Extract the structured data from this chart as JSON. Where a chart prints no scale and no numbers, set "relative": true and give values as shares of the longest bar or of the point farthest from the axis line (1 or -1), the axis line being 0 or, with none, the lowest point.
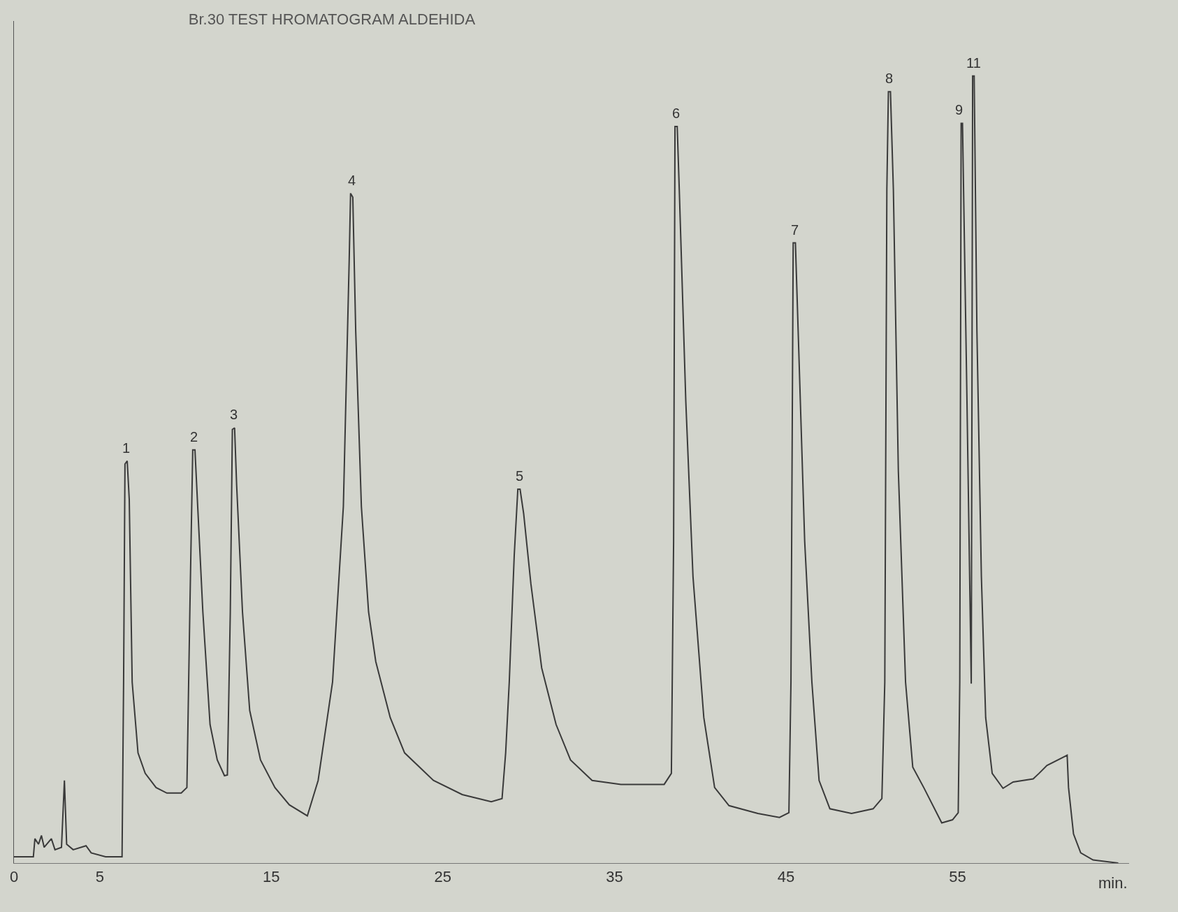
{
  "chart_data": {
    "type": "line",
    "title": "Br.30 TEST HROMATOGRAM ALDEHIDA",
    "xlabel": "min.",
    "relative": true,
    "color": "#3a3a3a",
    "marker": "none",
    "line_style": "solid",
    "xlim": [
      0,
      65
    ],
    "xticks": [
      0,
      5,
      15,
      25,
      35,
      45,
      55
    ],
    "x": [
      0,
      1.13,
      1.22,
      1.43,
      1.6,
      1.76,
      2.18,
      2.39,
      2.77,
      2.94,
      3.07,
      3.45,
      4.2,
      4.5,
      5.34,
      6.3,
      6.39,
      6.47,
      6.6,
      6.72,
      6.89,
      7.23,
      7.65,
      8.28,
      8.91,
      9.75,
      10.08,
      10.25,
      10.42,
      10.55,
      10.71,
      11.01,
      11.43,
      11.85,
      12.27,
      12.44,
      12.61,
      12.73,
      12.86,
      12.98,
      13.32,
      13.74,
      14.37,
      15.21,
      16.05,
      17.1,
      17.73,
      18.57,
      19.2,
      19.54,
      19.62,
      19.75,
      19.92,
      20.25,
      20.67,
      21.09,
      21.93,
      22.77,
      24.45,
      26.13,
      27.82,
      28.45,
      28.66,
      28.87,
      29.16,
      29.37,
      29.5,
      29.71,
      30.13,
      30.76,
      31.6,
      32.44,
      33.7,
      35.38,
      37.9,
      38.32,
      38.45,
      38.53,
      38.66,
      38.78,
      39.16,
      39.58,
      40.21,
      40.84,
      41.68,
      43.36,
      44.62,
      45.17,
      45.29,
      45.42,
      45.55,
      45.71,
      46.09,
      46.51,
      46.93,
      47.56,
      48.82,
      50.08,
      50.59,
      50.76,
      50.88,
      50.97,
      51.09,
      51.26,
      51.55,
      51.97,
      52.39,
      53.03,
      54.08,
      54.71,
      55.04,
      55.13,
      55.21,
      55.29,
      55.55,
      55.8,
      55.84,
      55.88,
      55.97,
      56.13,
      56.39,
      56.64,
      57.02,
      57.65,
      58.24,
      59.41,
      59.75,
      60.21,
      61.39,
      61.47,
      61.76,
      62.18,
      62.9,
      64.37
    ],
    "values": [
      0.008,
      0.008,
      0.031,
      0.024,
      0.035,
      0.02,
      0.031,
      0.017,
      0.02,
      0.105,
      0.024,
      0.017,
      0.022,
      0.013,
      0.008,
      0.008,
      0.23,
      0.507,
      0.511,
      0.462,
      0.23,
      0.14,
      0.114,
      0.096,
      0.089,
      0.089,
      0.096,
      0.319,
      0.525,
      0.525,
      0.453,
      0.319,
      0.176,
      0.131,
      0.111,
      0.112,
      0.319,
      0.551,
      0.553,
      0.48,
      0.319,
      0.194,
      0.131,
      0.096,
      0.074,
      0.06,
      0.105,
      0.23,
      0.453,
      0.766,
      0.851,
      0.846,
      0.676,
      0.453,
      0.319,
      0.256,
      0.185,
      0.14,
      0.105,
      0.087,
      0.078,
      0.082,
      0.14,
      0.23,
      0.391,
      0.475,
      0.475,
      0.444,
      0.355,
      0.248,
      0.176,
      0.131,
      0.105,
      0.1,
      0.1,
      0.114,
      0.409,
      0.936,
      0.936,
      0.856,
      0.587,
      0.364,
      0.185,
      0.096,
      0.073,
      0.063,
      0.058,
      0.064,
      0.23,
      0.788,
      0.788,
      0.676,
      0.409,
      0.23,
      0.105,
      0.069,
      0.063,
      0.069,
      0.082,
      0.23,
      0.856,
      0.98,
      0.98,
      0.856,
      0.498,
      0.23,
      0.122,
      0.096,
      0.051,
      0.055,
      0.064,
      0.23,
      0.94,
      0.94,
      0.587,
      0.228,
      0.587,
      1,
      1,
      0.676,
      0.364,
      0.185,
      0.114,
      0.095,
      0.103,
      0.107,
      0.114,
      0.124,
      0.137,
      0.096,
      0.037,
      0.013,
      0.004,
      0
    ],
    "annotations": [
      {
        "text": "1",
        "x": 6.55,
        "y": 0.511
      },
      {
        "text": "2",
        "x": 10.5,
        "y": 0.525
      },
      {
        "text": "3",
        "x": 12.8,
        "y": 0.553
      },
      {
        "text": "4",
        "x": 19.7,
        "y": 0.851
      },
      {
        "text": "5",
        "x": 29.45,
        "y": 0.475
      },
      {
        "text": "6",
        "x": 38.6,
        "y": 0.936
      },
      {
        "text": "7",
        "x": 45.5,
        "y": 0.788
      },
      {
        "text": "8",
        "x": 51.0,
        "y": 0.98
      },
      {
        "text": "9",
        "x": 55.1,
        "y": 0.94
      },
      {
        "text": "11",
        "x": 55.95,
        "y": 1
      }
    ]
  }
}
